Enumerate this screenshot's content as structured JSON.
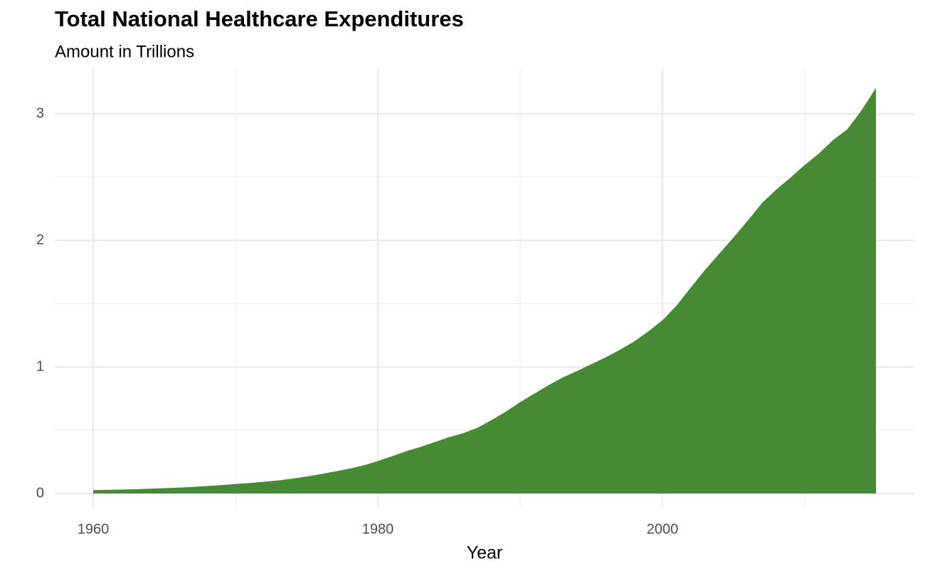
{
  "chart_data": {
    "type": "area",
    "title": "Total National Healthcare Expenditures",
    "subtitle": "Amount in Trillions",
    "x_label": "Year",
    "x": [
      1960,
      1961,
      1962,
      1963,
      1964,
      1965,
      1966,
      1967,
      1968,
      1969,
      1970,
      1971,
      1972,
      1973,
      1974,
      1975,
      1976,
      1977,
      1978,
      1979,
      1980,
      1981,
      1982,
      1983,
      1984,
      1985,
      1986,
      1987,
      1988,
      1989,
      1990,
      1991,
      1992,
      1993,
      1994,
      1995,
      1996,
      1997,
      1998,
      1999,
      2000,
      2001,
      2002,
      2003,
      2004,
      2005,
      2006,
      2007,
      2008,
      2009,
      2010,
      2011,
      2012,
      2013,
      2014,
      2015
    ],
    "values": [
      0.027,
      0.029,
      0.031,
      0.034,
      0.038,
      0.042,
      0.046,
      0.052,
      0.059,
      0.066,
      0.075,
      0.083,
      0.093,
      0.103,
      0.117,
      0.134,
      0.153,
      0.174,
      0.196,
      0.222,
      0.256,
      0.295,
      0.334,
      0.368,
      0.406,
      0.445,
      0.476,
      0.519,
      0.581,
      0.647,
      0.722,
      0.789,
      0.856,
      0.917,
      0.968,
      1.022,
      1.075,
      1.135,
      1.2,
      1.28,
      1.369,
      1.486,
      1.629,
      1.768,
      1.896,
      2.024,
      2.157,
      2.296,
      2.402,
      2.496,
      2.596,
      2.687,
      2.794,
      2.879,
      3.029,
      3.205
    ],
    "color": "#468a35",
    "xlim": [
      1957.3,
      2017.7
    ],
    "ylim": [
      -0.118,
      3.36
    ],
    "xticks": [
      1960,
      1980,
      2000
    ],
    "yticks": [
      0,
      1,
      2,
      3
    ],
    "xminor": [
      1970,
      1990,
      2010
    ],
    "yminor": [
      0.5,
      1.5,
      2.5
    ],
    "grid": true
  }
}
